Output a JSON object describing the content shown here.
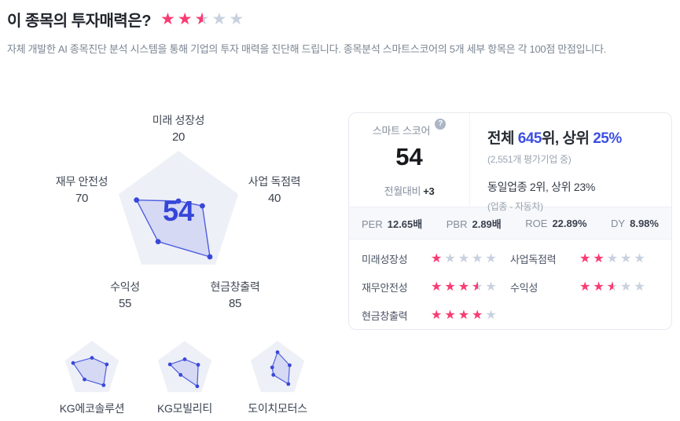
{
  "colors": {
    "accent_blue": "#3d50e2",
    "chart_blue": "#3545d9",
    "star_pink": "#f93b72",
    "star_gray": "#c8d1de",
    "pentagon_bg": "#eef0f7"
  },
  "icons": {
    "help": "?"
  },
  "header": {
    "title": "이 종목의 투자매력은?",
    "rating": 2.5,
    "subtitle": "자체 개발한 AI 종목진단 분석 시스템을 통해 기업의 투자 매력을 진단해 드립니다. 종목분석 스마트스코어의 5개 세부 항목은 각 100점 만점입니다."
  },
  "radar": {
    "score": "54",
    "axes": [
      {
        "label": "미래 성장성",
        "value": 20
      },
      {
        "label": "사업 독점력",
        "value": 40
      },
      {
        "label": "현금창출력",
        "value": 85
      },
      {
        "label": "수익성",
        "value": 55
      },
      {
        "label": "재무 안전성",
        "value": 70
      }
    ]
  },
  "score_card": {
    "score_label": "스마트 스코어",
    "score": "54",
    "mom_label": "전월대비",
    "mom_value": "+3",
    "rank_line": {
      "prefix": "전체 ",
      "rank": "645",
      "mid": "위, 상위 ",
      "pct": "25%"
    },
    "rank_sub": "(2,551개 평가기업 중)",
    "industry_line": "동일업종 2위, 상위 23%",
    "industry_sub": "(업종 - 자동차)",
    "metrics": [
      {
        "label": "PER",
        "value": "12.65배"
      },
      {
        "label": "PBR",
        "value": "2.89배"
      },
      {
        "label": "ROE",
        "value": "22.89%"
      },
      {
        "label": "DY",
        "value": "8.98%"
      }
    ],
    "ratings": [
      {
        "label": "미래성장성",
        "stars": 1
      },
      {
        "label": "사업독점력",
        "stars": 2
      },
      {
        "label": "재무안전성",
        "stars": 3.5
      },
      {
        "label": "수익성",
        "stars": 2.5
      },
      {
        "label": "현금창출력",
        "stars": 4
      }
    ]
  },
  "peers": [
    {
      "name": "KG에코솔루션",
      "values": [
        40,
        55,
        70,
        45,
        70
      ]
    },
    {
      "name": "KG모빌리티",
      "values": [
        35,
        50,
        75,
        25,
        55
      ]
    },
    {
      "name": "도이치모터스",
      "values": [
        60,
        45,
        65,
        25,
        20
      ]
    }
  ],
  "chart_data": {
    "type": "radar",
    "categories": [
      "미래 성장성",
      "사업 독점력",
      "현금창출력",
      "수익성",
      "재무 안전성"
    ],
    "range": [
      0,
      100
    ],
    "series": [
      {
        "name": "스마트 스코어",
        "center_score": 54,
        "values": [
          20,
          40,
          85,
          55,
          70
        ]
      },
      {
        "name": "KG에코솔루션",
        "values": [
          40,
          55,
          70,
          45,
          70
        ]
      },
      {
        "name": "KG모빌리티",
        "values": [
          35,
          50,
          75,
          25,
          55
        ]
      },
      {
        "name": "도이치모터스",
        "values": [
          60,
          45,
          65,
          25,
          20
        ]
      }
    ]
  }
}
